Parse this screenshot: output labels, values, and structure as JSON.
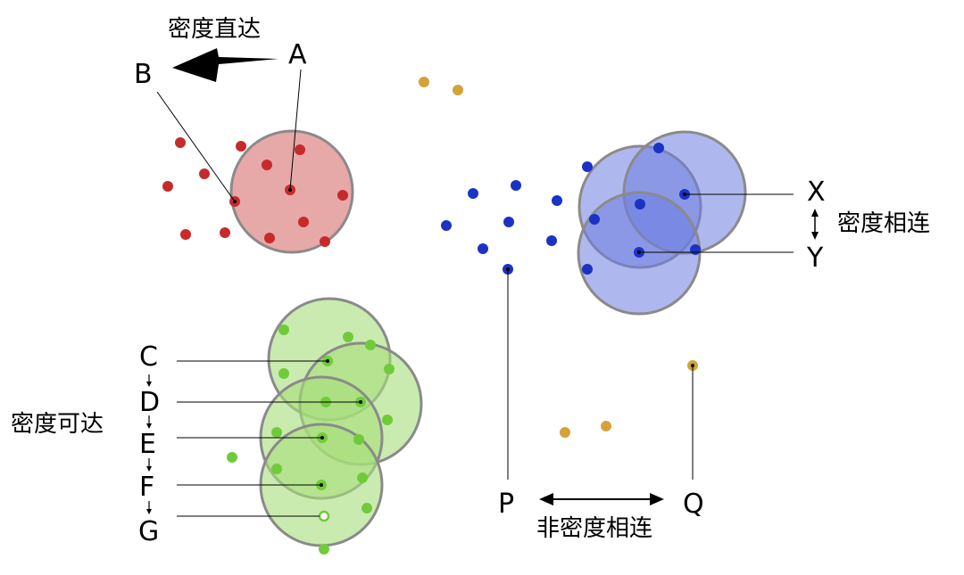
{
  "labels": {
    "A": "A",
    "B": "B",
    "C": "C",
    "D": "D",
    "E": "E",
    "F": "F",
    "G": "G",
    "X": "X",
    "Y": "Y",
    "P": "P",
    "Q": "Q"
  },
  "captions": {
    "directly_density_reachable": "密度直达",
    "density_connected": "密度相连",
    "density_reachable": "密度可达",
    "not_density_connected": "非密度相连"
  },
  "colors": {
    "red_point": "#c62b2b",
    "red_circle_fill": "#e7a8a8",
    "blue_point": "#1a33c4",
    "blue_circle_fill": "#6d7ee0",
    "green_point": "#6fcb3a",
    "green_circle_fill": "#a6dd7a",
    "gold_point": "#d5a239",
    "circle_stroke": "#8a8a8a",
    "leader_line": "#000000"
  }
}
